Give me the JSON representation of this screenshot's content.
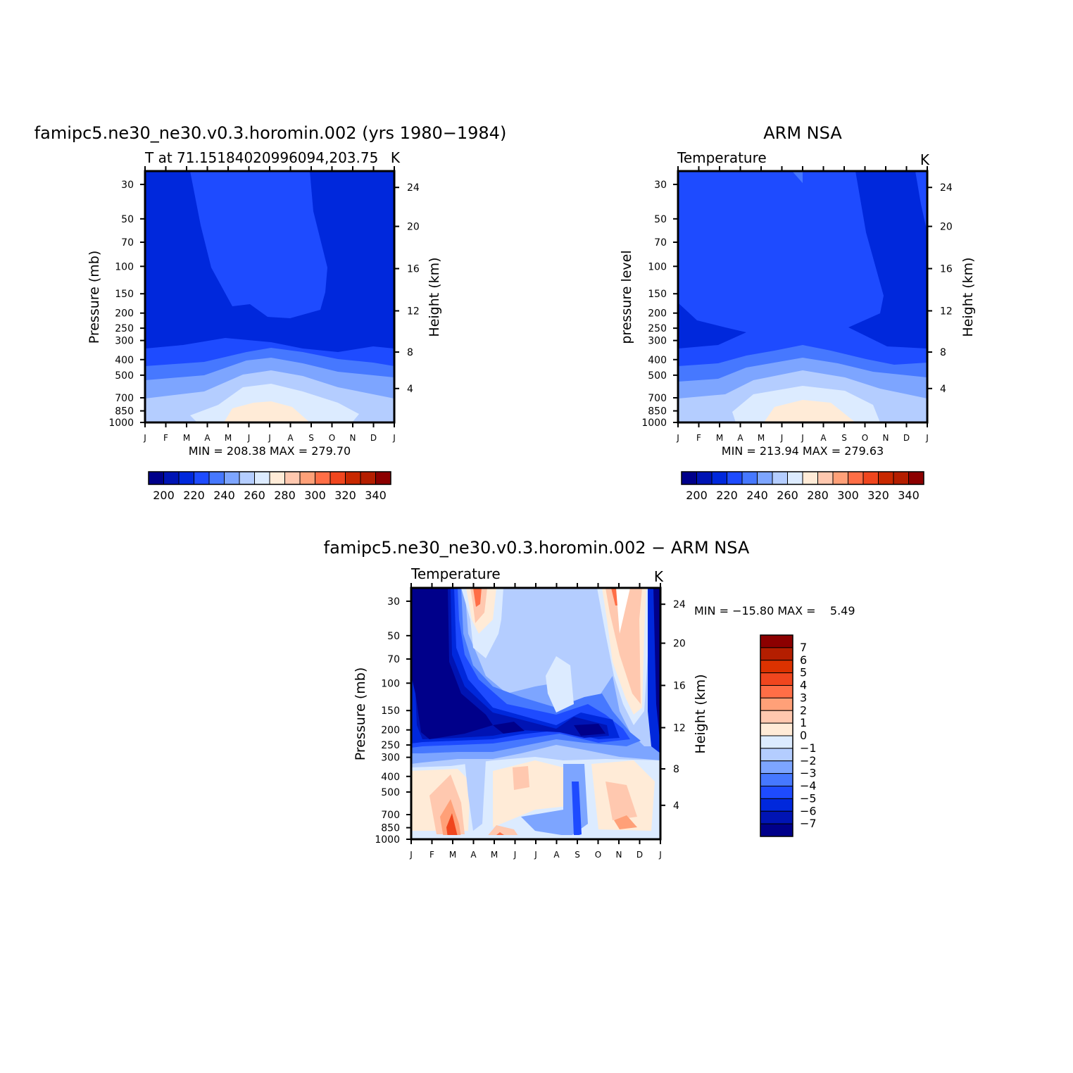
{
  "chart_data": [
    {
      "type": "heatmap",
      "title": "famipc5.ne30_ne30.v0.3.horomin.002 (yrs 1980−1984)",
      "left_label": "T at 71.15184020996094,203.75",
      "right_label": "K",
      "ylabel": "Pressure (mb)",
      "ylabel_right": "Height (km)",
      "x_ticks": [
        "J",
        "F",
        "M",
        "A",
        "M",
        "J",
        "J",
        "A",
        "S",
        "O",
        "N",
        "D",
        "J"
      ],
      "y_ticks": [
        "30",
        "50",
        "70",
        "100",
        "150",
        "200",
        "250",
        "300",
        "400",
        "500",
        "700",
        "850",
        "1000"
      ],
      "y_right_ticks": [
        "24",
        "20",
        "16",
        "12",
        "8",
        "4"
      ],
      "min_max_text": "MIN = 208.38 MAX = 279.70",
      "min": 208.38,
      "max": 279.7,
      "colorbar_labels": [
        "200",
        "220",
        "240",
        "260",
        "280",
        "300",
        "320",
        "340"
      ],
      "color_levels": [
        "#00008a",
        "#0014b4",
        "#0028dc",
        "#1e4bff",
        "#4678ff",
        "#7da5ff",
        "#b4cdff",
        "#dcebff",
        "#ffebd7",
        "#ffc8af",
        "#ffa078",
        "#ff6e46",
        "#f0461e",
        "#c82800",
        "#b41e00",
        "#8c0000"
      ]
    },
    {
      "type": "heatmap",
      "title": "ARM NSA",
      "left_label": "Temperature",
      "right_label": "K",
      "ylabel": "pressure level",
      "ylabel_right": "Height (km)",
      "x_ticks": [
        "J",
        "F",
        "M",
        "A",
        "M",
        "J",
        "J",
        "A",
        "S",
        "O",
        "N",
        "D",
        "J"
      ],
      "y_ticks": [
        "30",
        "50",
        "70",
        "100",
        "150",
        "200",
        "250",
        "300",
        "400",
        "500",
        "700",
        "850",
        "1000"
      ],
      "y_right_ticks": [
        "24",
        "20",
        "16",
        "12",
        "8",
        "4"
      ],
      "min_max_text": "MIN = 213.94 MAX = 279.63",
      "min": 213.94,
      "max": 279.63,
      "colorbar_labels": [
        "200",
        "220",
        "240",
        "260",
        "280",
        "300",
        "320",
        "340"
      ]
    },
    {
      "type": "heatmap",
      "title": "famipc5.ne30_ne30.v0.3.horomin.002 − ARM NSA",
      "left_label": "Temperature",
      "right_label": "K",
      "ylabel": "Pressure (mb)",
      "ylabel_right": "Height (km)",
      "x_ticks": [
        "J",
        "F",
        "M",
        "A",
        "M",
        "J",
        "J",
        "A",
        "S",
        "O",
        "N",
        "D",
        "J"
      ],
      "y_ticks": [
        "30",
        "50",
        "70",
        "100",
        "150",
        "200",
        "250",
        "300",
        "400",
        "500",
        "700",
        "850",
        "1000"
      ],
      "y_right_ticks": [
        "24",
        "20",
        "16",
        "12",
        "8",
        "4"
      ],
      "min_max_text": "MIN = −15.80 MAX =    5.49",
      "min": -15.8,
      "max": 5.49,
      "colorbar_labels": [
        "7",
        "6",
        "5",
        "4",
        "3",
        "2",
        "1",
        "0",
        "−1",
        "−2",
        "−3",
        "−4",
        "−5",
        "−6",
        "−7"
      ],
      "color_levels": [
        "#8c0000",
        "#b41e00",
        "#dc3200",
        "#f0461e",
        "#ff6e46",
        "#ffa078",
        "#ffc8af",
        "#ffebd7",
        "#dcebff",
        "#b4cdff",
        "#7da5ff",
        "#4678ff",
        "#1e4bff",
        "#0028dc",
        "#0014b4",
        "#00008a"
      ]
    }
  ]
}
